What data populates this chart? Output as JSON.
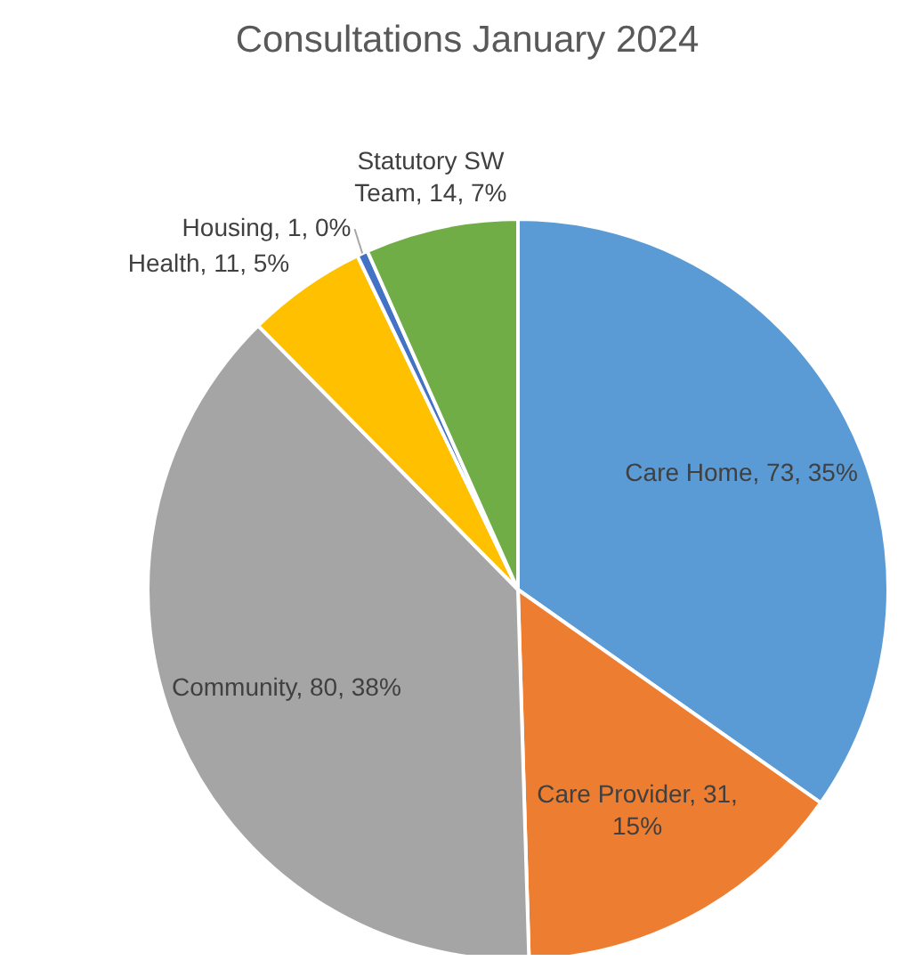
{
  "chart_data": {
    "type": "pie",
    "title": "Consultations January 2024",
    "categories": [
      "Care Home",
      "Care Provider",
      "Community",
      "Health",
      "Housing",
      "Statutory SW Team"
    ],
    "values": [
      73,
      31,
      80,
      11,
      1,
      14
    ],
    "value_labels": [
      "73, 35%",
      "31, 15%",
      "80, 38%",
      "11, 5%",
      "1, 0%",
      "14, 7%"
    ],
    "colors": [
      "#5b9bd5",
      "#ed7d31",
      "#a5a5a5",
      "#ffc000",
      "#4472c4",
      "#70ad47"
    ],
    "legend": false
  }
}
